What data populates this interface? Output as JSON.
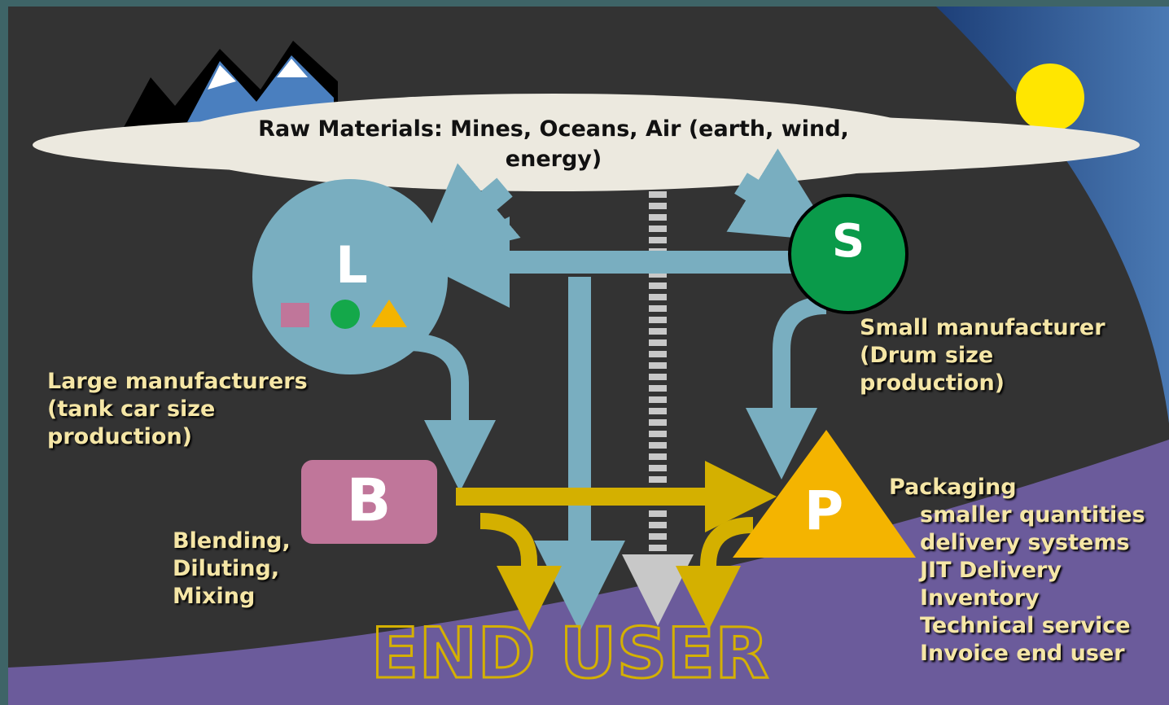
{
  "cloud": {
    "text": "Raw Materials: Mines, Oceans, Air (earth, wind, energy)"
  },
  "nodes": [
    {
      "label": "L"
    },
    {
      "label": "S"
    },
    {
      "label": "B"
    },
    {
      "label": "P"
    }
  ],
  "descriptions": {
    "large": [
      "Large manufacturers",
      "(tank car size",
      "production)"
    ],
    "small": [
      "Small manufacturer",
      "(Drum size",
      "production)"
    ],
    "blending": [
      "Blending,",
      "Diluting,",
      "Mixing"
    ],
    "packaging": {
      "title": "Packaging",
      "items": [
        "smaller quantities",
        "delivery systems",
        "JIT Delivery",
        "Inventory",
        "Technical service",
        "Invoice end user"
      ]
    }
  },
  "end_user": "END USER"
}
